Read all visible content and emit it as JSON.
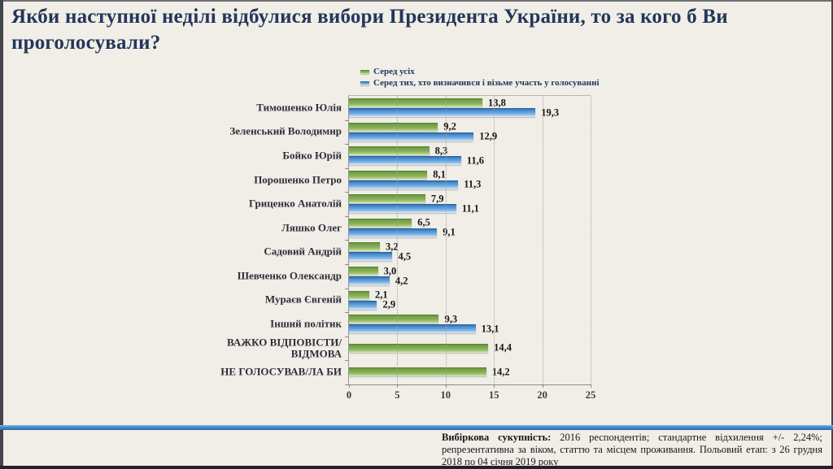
{
  "slide": {
    "title": "Якби наступної неділі відбулися вибори Президента України, то за кого б Ви проголосували?",
    "footer": {
      "label_bold": "Вибіркова сукупність:",
      "text": " 2016 респондентів; стандартне відхилення +/- 2,24%; репрезентативна за віком, статтю та місцем проживання. Польовий етап: з 26 грудня 2018 по 04 січня 2019 року"
    },
    "colors": {
      "background": "#f0eee7",
      "title_text": "#24365c",
      "series_all": "#77a23e",
      "series_decided": "#5b9bd5",
      "divider_blue": "#4a8fd3"
    }
  },
  "chart_data": {
    "type": "bar",
    "orientation": "horizontal",
    "title": "",
    "legend_position": "top",
    "grid": "vertical-dotted",
    "value_label_format": "decimal-comma",
    "xlim": [
      0,
      25
    ],
    "xticks": [
      0,
      5,
      10,
      15,
      20,
      25
    ],
    "categories": [
      "Тимошенко Юлія",
      "Зеленський Володимир",
      "Бойко Юрій",
      "Порошенко Петро",
      "Гриценко Анатолій",
      "Ляшко Олег",
      "Садовий Андрій",
      "Шевченко Олександр",
      "Мураєв Євгеній",
      "Інший політик",
      "ВАЖКО ВІДПОВІСТИ/\nВІДМОВА",
      "НЕ ГОЛОСУВАВ/ЛА БИ"
    ],
    "series": [
      {
        "name": "Серед усіх",
        "color": "#77a23e",
        "values": [
          13.8,
          9.2,
          8.3,
          8.1,
          7.9,
          6.5,
          3.2,
          3.0,
          2.1,
          9.3,
          14.4,
          14.2
        ]
      },
      {
        "name": "Серед тих, хто визначився і візьме участь у голосуванні",
        "color": "#5b9bd5",
        "values": [
          19.3,
          12.9,
          11.6,
          11.3,
          11.1,
          9.1,
          4.5,
          4.2,
          2.9,
          13.1,
          null,
          null
        ]
      }
    ]
  }
}
